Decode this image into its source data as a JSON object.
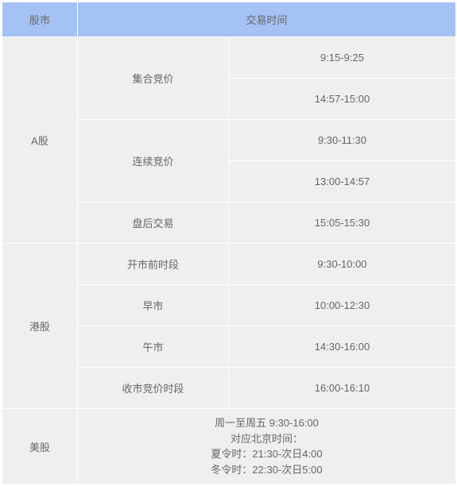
{
  "colors": {
    "header_bg": "#a4c2f4",
    "body_bg": "#efefef",
    "border": "#ffffff",
    "text": "#666666"
  },
  "header": {
    "market": "股市",
    "trading_time": "交易时间"
  },
  "rows": {
    "a_shares": {
      "label": "A股",
      "call_auction": {
        "label": "集合竞价",
        "t1": "9:15-9:25",
        "t2": "14:57-15:00"
      },
      "continuous": {
        "label": "连续竞价",
        "t1": "9:30-11:30",
        "t2": "13:00-14:57"
      },
      "after_hours": {
        "label": "盘后交易",
        "t1": "15:05-15:30"
      }
    },
    "hk": {
      "label": "港股",
      "pre_open": {
        "label": "开市前时段",
        "t": "9:30-10:00"
      },
      "morning": {
        "label": "早市",
        "t": "10:00-12:30"
      },
      "afternoon": {
        "label": "午市",
        "t": "14:30-16:00"
      },
      "closing_auction": {
        "label": "收市竞价时段",
        "t": "16:00-16:10"
      }
    },
    "us": {
      "label": "美股",
      "note": "周一至周五 9:30-16:00\n对应北京时间：\n夏令时：21:30-次日4:00\n冬令时：22:30-次日5:00"
    }
  }
}
